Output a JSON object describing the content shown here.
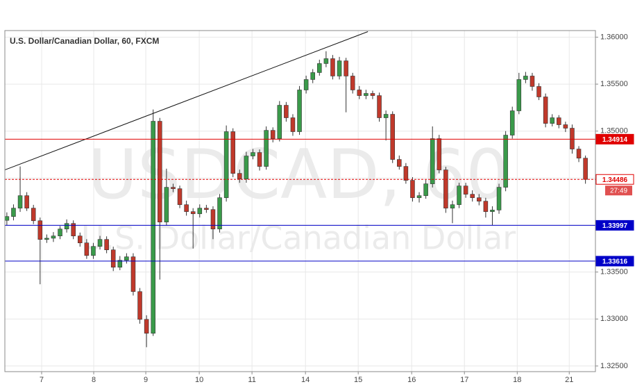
{
  "chart_data": {
    "type": "candlestick",
    "title": "U.S. Dollar/Canadian Dollar, 60, FXCM",
    "watermark": [
      "USDCAD, 60",
      "U.S. Dollar/Canadian Dollar"
    ],
    "open": [
      1.3405,
      1.34091,
      1.3418,
      1.34313,
      1.3418,
      1.34046,
      1.33847,
      1.3386,
      1.33884,
      1.33958,
      1.34017,
      1.33884,
      1.3381,
      1.33676,
      1.33773,
      1.33847,
      1.33736,
      1.33551,
      1.33625,
      1.33662,
      1.33292,
      1.32996,
      1.32848,
      1.35105,
      1.34032,
      1.34402,
      1.34387,
      1.34217,
      1.34143,
      1.3412,
      1.3418,
      1.34165,
      1.33958,
      1.34291,
      1.34994,
      1.3455,
      1.3449,
      1.34735,
      1.34772,
      1.34624,
      1.35008,
      1.3492,
      1.35275,
      1.35142,
      1.34994,
      1.35438,
      1.35549,
      1.35623,
      1.35719,
      1.35771,
      1.35586,
      1.35748,
      1.35586,
      1.35438,
      1.35378,
      1.35401,
      1.35378,
      1.35142,
      1.35179,
      1.34698,
      1.34624,
      1.34476,
      1.34291,
      1.34313,
      1.34439,
      1.3492,
      1.34587,
      1.3418,
      1.34217,
      1.34416,
      1.34328,
      1.34291,
      1.34254,
      1.34143,
      1.3416,
      1.34402,
      1.34957,
      1.35216,
      1.35549,
      1.35586,
      1.35475,
      1.35364,
      1.35082,
      1.35142,
      1.35068,
      1.35031,
      1.34809,
      1.34712
    ],
    "high": [
      1.34135,
      1.3422,
      1.34624,
      1.3435,
      1.34215,
      1.3408,
      1.339,
      1.33925,
      1.3399,
      1.3406,
      1.3405,
      1.3392,
      1.3385,
      1.3381,
      1.33885,
      1.3388,
      1.3377,
      1.3367,
      1.337,
      1.337,
      1.3333,
      1.3304,
      1.3523,
      1.3514,
      1.346,
      1.3444,
      1.3442,
      1.3426,
      1.3418,
      1.3422,
      1.34215,
      1.342,
      1.3433,
      1.3506,
      1.3503,
      1.3459,
      1.3478,
      1.3481,
      1.34805,
      1.3505,
      1.3504,
      1.3532,
      1.3531,
      1.3518,
      1.3548,
      1.3559,
      1.3566,
      1.3576,
      1.3585,
      1.3581,
      1.3579,
      1.3578,
      1.3562,
      1.3548,
      1.3544,
      1.3543,
      1.3541,
      1.3522,
      1.3521,
      1.3474,
      1.3466,
      1.3451,
      1.3435,
      1.3448,
      1.3505,
      1.3496,
      1.3462,
      1.3426,
      1.3445,
      1.3445,
      1.3437,
      1.3433,
      1.3429,
      1.342,
      1.3444,
      1.35,
      1.3526,
      1.3562,
      1.3563,
      1.3562,
      1.3551,
      1.354,
      1.3518,
      1.3517,
      1.351,
      1.3507,
      1.3484,
      1.3474
    ],
    "low": [
      1.34,
      1.3405,
      1.3414,
      1.3415,
      1.3401,
      1.3337,
      1.3381,
      1.3382,
      1.3385,
      1.3392,
      1.3385,
      1.3377,
      1.3364,
      1.3364,
      1.3374,
      1.337,
      1.3351,
      1.3352,
      1.3359,
      1.3325,
      1.3295,
      1.327,
      1.3282,
      1.3342,
      1.34,
      1.3435,
      1.3418,
      1.341,
      1.3375,
      1.3408,
      1.3413,
      1.3385,
      1.3392,
      1.3425,
      1.3451,
      1.3445,
      1.3445,
      1.347,
      1.3458,
      1.3459,
      1.3488,
      1.3489,
      1.351,
      1.3495,
      1.3496,
      1.354,
      1.3551,
      1.3559,
      1.3568,
      1.3555,
      1.3555,
      1.352,
      1.354,
      1.3534,
      1.3534,
      1.3534,
      1.351,
      1.349,
      1.3466,
      1.3459,
      1.3444,
      1.3425,
      1.3424,
      1.3428,
      1.344,
      1.3455,
      1.3413,
      1.3402,
      1.3418,
      1.3429,
      1.3425,
      1.3421,
      1.3408,
      1.34,
      1.3412,
      1.3436,
      1.3492,
      1.3518,
      1.3551,
      1.3543,
      1.3533,
      1.3504,
      1.3505,
      1.3503,
      1.3499,
      1.3476,
      1.3467,
      1.3444
    ],
    "close": [
      1.34091,
      1.3418,
      1.34313,
      1.3418,
      1.34046,
      1.33847,
      1.3386,
      1.33884,
      1.33958,
      1.34017,
      1.33884,
      1.3381,
      1.33676,
      1.33773,
      1.33847,
      1.33736,
      1.33551,
      1.33625,
      1.33662,
      1.33292,
      1.32996,
      1.32848,
      1.35105,
      1.34032,
      1.34402,
      1.34387,
      1.34217,
      1.34143,
      1.3412,
      1.3418,
      1.34165,
      1.33958,
      1.34291,
      1.34994,
      1.3455,
      1.3449,
      1.34735,
      1.34772,
      1.34624,
      1.35008,
      1.3492,
      1.35275,
      1.35142,
      1.34994,
      1.35438,
      1.35549,
      1.35623,
      1.35719,
      1.35771,
      1.35586,
      1.35748,
      1.35586,
      1.35438,
      1.35378,
      1.35401,
      1.35378,
      1.35142,
      1.35179,
      1.34698,
      1.34624,
      1.34476,
      1.34291,
      1.34313,
      1.34439,
      1.3492,
      1.34587,
      1.3418,
      1.34217,
      1.34416,
      1.34328,
      1.34291,
      1.34254,
      1.34143,
      1.3416,
      1.34402,
      1.34957,
      1.35216,
      1.35549,
      1.35586,
      1.35475,
      1.35364,
      1.35082,
      1.35142,
      1.35068,
      1.35031,
      1.34809,
      1.34712,
      1.34486
    ],
    "up_color": "#3a9a4a",
    "down_color": "#c0392b",
    "xlim": [
      -0.3,
      88.5
    ],
    "xticks": [
      {
        "value": 5.23,
        "label": "7"
      },
      {
        "value": 13.06,
        "label": "8"
      },
      {
        "value": 20.89,
        "label": "9"
      },
      {
        "value": 28.93,
        "label": "10"
      },
      {
        "value": 36.86,
        "label": "11"
      },
      {
        "value": 44.9,
        "label": "14"
      },
      {
        "value": 52.83,
        "label": "15"
      },
      {
        "value": 60.87,
        "label": "16"
      },
      {
        "value": 68.8,
        "label": "17"
      },
      {
        "value": 76.74,
        "label": "18"
      },
      {
        "value": 84.56,
        "label": "21"
      }
    ],
    "ylim": [
      1.3244,
      1.3607
    ],
    "yticks": [
      {
        "value": 1.325,
        "label": "1.32500"
      },
      {
        "value": 1.33,
        "label": "1.33000"
      },
      {
        "value": 1.335,
        "label": "1.33500"
      },
      {
        "value": 1.34,
        "label": "1.34000"
      },
      {
        "value": 1.345,
        "label": "1.34500"
      },
      {
        "value": 1.35,
        "label": "1.35000"
      },
      {
        "value": 1.355,
        "label": "1.35500"
      },
      {
        "value": 1.36,
        "label": "1.36000"
      }
    ],
    "grid": true,
    "levels": [
      {
        "value": 1.34914,
        "color": "#e00000",
        "style": "solid"
      },
      {
        "value": 1.34486,
        "color": "#e00000",
        "style": "dashed"
      },
      {
        "value": 1.33997,
        "color": "#0000c8",
        "style": "solid"
      },
      {
        "value": 1.33616,
        "color": "#0000c8",
        "style": "solid"
      }
    ],
    "countdown": "27:49",
    "trendline": {
      "x": [
        -0.3,
        54.29
      ],
      "y": [
        1.34587,
        1.36059
      ]
    }
  }
}
